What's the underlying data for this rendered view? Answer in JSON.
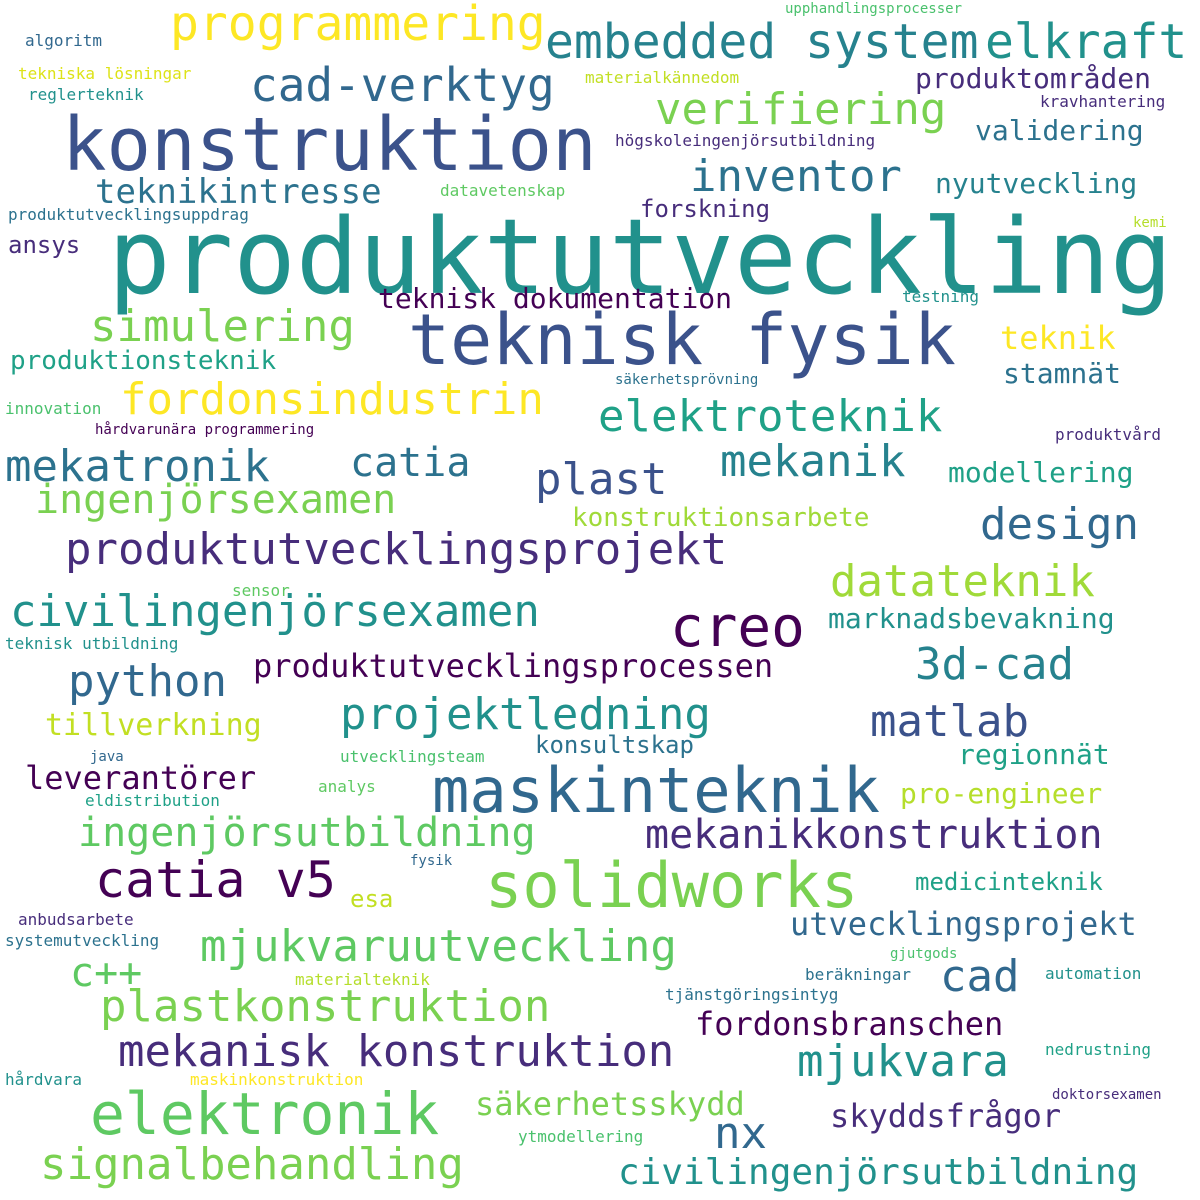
{
  "words": [
    {
      "text": "produktutveckling",
      "color": "#21918c"
    },
    {
      "text": "konstruktion",
      "color": "#3b528b"
    },
    {
      "text": "teknisk fysik",
      "color": "#3b528b"
    },
    {
      "text": "maskinteknik",
      "color": "#31688e"
    },
    {
      "text": "solidworks",
      "color": "#7ad151"
    },
    {
      "text": "elektronik",
      "color": "#5ec962"
    },
    {
      "text": "creo",
      "color": "#440154"
    },
    {
      "text": "catia v5",
      "color": "#440154"
    },
    {
      "text": "embedded system",
      "color": "#26828e"
    },
    {
      "text": "elkraft",
      "color": "#21918c"
    },
    {
      "text": "programmering",
      "color": "#fde725"
    },
    {
      "text": "cad-verktyg",
      "color": "#31688e"
    },
    {
      "text": "verifiering",
      "color": "#7ad151"
    },
    {
      "text": "inventor",
      "color": "#2c728e"
    },
    {
      "text": "teknikintresse",
      "color": "#2c728e"
    },
    {
      "text": "simulering",
      "color": "#7ad151"
    },
    {
      "text": "fordonsindustrin",
      "color": "#fde725"
    },
    {
      "text": "elektroteknik",
      "color": "#1fa187"
    },
    {
      "text": "mekatronik",
      "color": "#2c728e"
    },
    {
      "text": "catia",
      "color": "#2c728e"
    },
    {
      "text": "plast",
      "color": "#3b528b"
    },
    {
      "text": "mekanik",
      "color": "#26828e"
    },
    {
      "text": "design",
      "color": "#31688e"
    },
    {
      "text": "ingenjörsexamen",
      "color": "#7ad151"
    },
    {
      "text": "produktutvecklingsprojekt",
      "color": "#472d7b"
    },
    {
      "text": "civilingenjörsexamen",
      "color": "#21918c"
    },
    {
      "text": "datateknik",
      "color": "#a0da39"
    },
    {
      "text": "3d-cad",
      "color": "#26828e"
    },
    {
      "text": "python",
      "color": "#31688e"
    },
    {
      "text": "projektledning",
      "color": "#21918c"
    },
    {
      "text": "matlab",
      "color": "#3b528b"
    },
    {
      "text": "mekanikkonstruktion",
      "color": "#472d7b"
    },
    {
      "text": "mjukvaruutveckling",
      "color": "#5ec962"
    },
    {
      "text": "plastkonstruktion",
      "color": "#7ad151"
    },
    {
      "text": "mekanisk konstruktion",
      "color": "#472d7b"
    },
    {
      "text": "signalbehandling",
      "color": "#7ad151"
    },
    {
      "text": "civilingenjörsutbildning",
      "color": "#21918c"
    },
    {
      "text": "cad",
      "color": "#31688e"
    },
    {
      "text": "nx",
      "color": "#31688e"
    },
    {
      "text": "mjukvara",
      "color": "#21918c"
    },
    {
      "text": "c++",
      "color": "#5ec962"
    },
    {
      "text": "ingenjörsutbildning",
      "color": "#5ec962"
    },
    {
      "text": "utvecklingsprojekt",
      "color": "#31688e"
    },
    {
      "text": "fordonsbranschen",
      "color": "#440154"
    },
    {
      "text": "skyddsfrågor",
      "color": "#472d7b"
    },
    {
      "text": "säkerhetsskydd",
      "color": "#7ad151"
    },
    {
      "text": "produktutvecklingsprocessen",
      "color": "#440154"
    },
    {
      "text": "leverantörer",
      "color": "#440154"
    },
    {
      "text": "teknisk dokumentation",
      "color": "#440154"
    },
    {
      "text": "produktområden",
      "color": "#472d7b"
    },
    {
      "text": "validering",
      "color": "#2c728e"
    },
    {
      "text": "nyutveckling",
      "color": "#26828e"
    },
    {
      "text": "forskning",
      "color": "#472d7b"
    },
    {
      "text": "ansys",
      "color": "#472d7b"
    },
    {
      "text": "teknik",
      "color": "#fde725"
    },
    {
      "text": "stamnät",
      "color": "#2c728e"
    },
    {
      "text": "produktionsteknik",
      "color": "#1fa187"
    },
    {
      "text": "modellering",
      "color": "#1fa187"
    },
    {
      "text": "konstruktionsarbete",
      "color": "#a0da39"
    },
    {
      "text": "marknadsbevakning",
      "color": "#21918c"
    },
    {
      "text": "tillverkning",
      "color": "#c2df23"
    },
    {
      "text": "konsultskap",
      "color": "#2c728e"
    },
    {
      "text": "regionnät",
      "color": "#1fa187"
    },
    {
      "text": "pro-engineer",
      "color": "#b5de2b"
    },
    {
      "text": "medicinteknik",
      "color": "#1fa187"
    },
    {
      "text": "esa",
      "color": "#c2df23"
    },
    {
      "text": "algoritm",
      "color": "#31688e"
    },
    {
      "text": "tekniska lösningar",
      "color": "#dde318"
    },
    {
      "text": "reglerteknik",
      "color": "#21918c"
    },
    {
      "text": "upphandlingsprocesser",
      "color": "#4ac16d"
    },
    {
      "text": "materialkännedom",
      "color": "#c2df23"
    },
    {
      "text": "kravhantering",
      "color": "#472d7b"
    },
    {
      "text": "högskoleingenjörsutbildning",
      "color": "#472d7b"
    },
    {
      "text": "datavetenskap",
      "color": "#5ec962"
    },
    {
      "text": "produktutvecklingsuppdrag",
      "color": "#2c728e"
    },
    {
      "text": "kemi",
      "color": "#b5de2b"
    },
    {
      "text": "testning",
      "color": "#21918c"
    },
    {
      "text": "säkerhetsprövning",
      "color": "#2c728e"
    },
    {
      "text": "innovation",
      "color": "#4ac16d"
    },
    {
      "text": "hårdvarunära programmering",
      "color": "#440154"
    },
    {
      "text": "produktvård",
      "color": "#472d7b"
    },
    {
      "text": "sensor",
      "color": "#5ec962"
    },
    {
      "text": "teknisk utbildning",
      "color": "#21918c"
    },
    {
      "text": "java",
      "color": "#31688e"
    },
    {
      "text": "utvecklingsteam",
      "color": "#4ac16d"
    },
    {
      "text": "analys",
      "color": "#5ec962"
    },
    {
      "text": "eldistribution",
      "color": "#1fa187"
    },
    {
      "text": "fysik",
      "color": "#31688e"
    },
    {
      "text": "anbudsarbete",
      "color": "#472d7b"
    },
    {
      "text": "systemutveckling",
      "color": "#2c728e"
    },
    {
      "text": "gjutgods",
      "color": "#4ac16d"
    },
    {
      "text": "beräkningar",
      "color": "#2c728e"
    },
    {
      "text": "automation",
      "color": "#21918c"
    },
    {
      "text": "tjänstgöringsintyg",
      "color": "#2c728e"
    },
    {
      "text": "materialteknik",
      "color": "#b5de2b"
    },
    {
      "text": "nedrustning",
      "color": "#1fa187"
    },
    {
      "text": "hårdvara",
      "color": "#21918c"
    },
    {
      "text": "maskinkonstruktion",
      "color": "#fde725"
    },
    {
      "text": "doktorsexamen",
      "color": "#472d7b"
    },
    {
      "text": "ytmodellering",
      "color": "#4ac16d"
    }
  ]
}
